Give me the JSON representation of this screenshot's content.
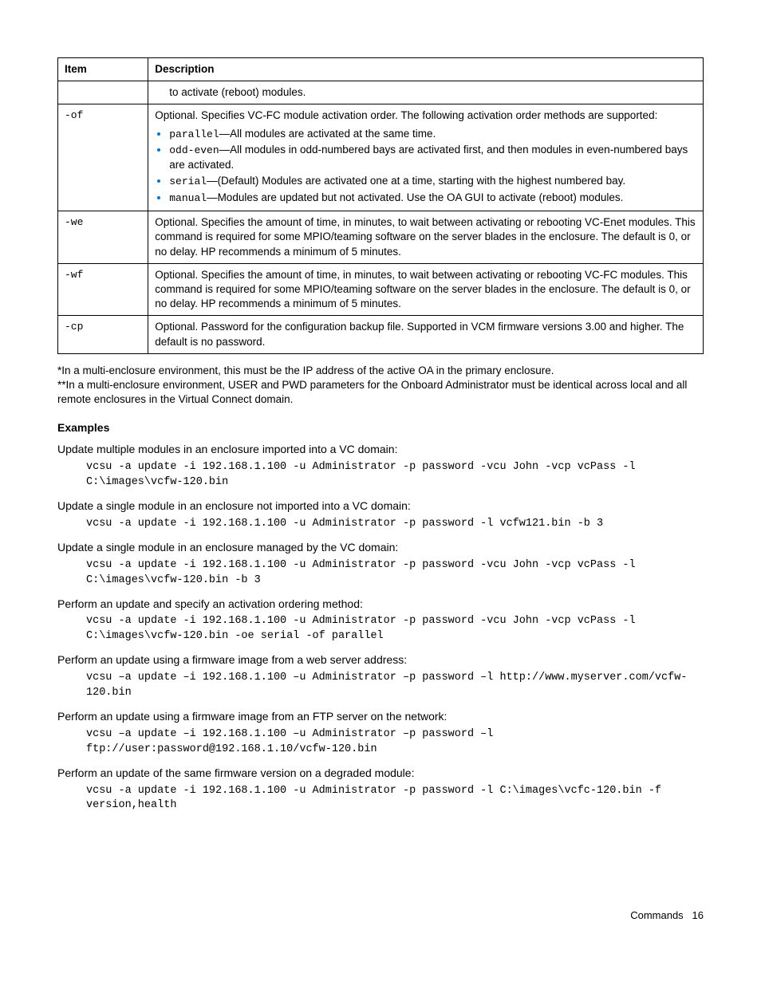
{
  "table": {
    "headers": {
      "item": "Item",
      "desc": "Description"
    },
    "rows": [
      {
        "item": "",
        "desc_pre": "",
        "paddedDesc": true,
        "plain": "to activate (reboot) modules."
      },
      {
        "item": "-of",
        "desc_pre": "Optional. Specifies VC-FC module activation order. The following activation order methods are supported:",
        "bullets": [
          {
            "code": "parallel",
            "text": "—All modules are activated at the same time."
          },
          {
            "code": "odd-even",
            "text": "—All modules in odd-numbered bays are activated first, and then modules in even-numbered bays are activated."
          },
          {
            "code": "serial",
            "text": "—(Default) Modules are activated one at a time, starting with the highest numbered bay."
          },
          {
            "code": "manual",
            "text": "—Modules are updated but not activated. Use the OA GUI to activate (reboot) modules."
          }
        ]
      },
      {
        "item": "-we",
        "plain": "Optional. Specifies the amount of time, in minutes, to wait between activating or rebooting VC-Enet modules. This command is required for some MPIO/teaming software on the server blades in the enclosure. The default is 0, or no delay. HP recommends a minimum of 5 minutes."
      },
      {
        "item": "-wf",
        "plain": "Optional. Specifies the amount of time, in minutes, to wait between activating or rebooting VC-FC modules. This command is required for some MPIO/teaming software on the server blades in the enclosure. The default is 0, or no delay. HP recommends a minimum of 5 minutes."
      },
      {
        "item": "-cp",
        "plain": "Optional. Password for the configuration backup file. Supported in VCM firmware versions 3.00 and higher. The default is no password."
      }
    ]
  },
  "footnotes": [
    "*In a multi-enclosure environment, this must be the IP address of the active OA in the primary enclosure.",
    "**In a multi-enclosure environment, USER and PWD parameters for the Onboard Administrator must be identical across local and all remote enclosures in the Virtual Connect domain."
  ],
  "examples_heading": "Examples",
  "examples": [
    {
      "intro": "Update multiple modules in an enclosure imported into a VC domain:",
      "code": "vcsu -a update -i 192.168.1.100 -u Administrator -p password -vcu John -vcp vcPass -l C:\\images\\vcfw-120.bin"
    },
    {
      "intro": "Update a single module in an enclosure not imported into a VC domain:",
      "code": "vcsu -a update -i 192.168.1.100 -u Administrator -p password -l vcfw121.bin -b 3"
    },
    {
      "intro": "Update a single module in an enclosure managed by the VC domain:",
      "code": "vcsu -a update -i 192.168.1.100 -u Administrator -p password -vcu John -vcp vcPass -l C:\\images\\vcfw-120.bin -b 3"
    },
    {
      "intro": "Perform an update and specify an activation ordering method:",
      "code": "vcsu -a update -i 192.168.1.100 -u Administrator -p password -vcu John -vcp vcPass -l C:\\images\\vcfw-120.bin -oe serial -of parallel"
    },
    {
      "intro": "Perform an update using a firmware image from a web server address:",
      "code": "vcsu –a update –i 192.168.1.100 –u Administrator –p password –l http://www.myserver.com/vcfw-120.bin"
    },
    {
      "intro": "Perform an update using a firmware image from an FTP server on the network:",
      "code": "vcsu –a update –i 192.168.1.100 –u Administrator –p password –l ftp://user:password@192.168.1.10/vcfw-120.bin"
    },
    {
      "intro": "Perform an update of the same firmware version on a degraded module:",
      "code": "vcsu -a update -i 192.168.1.100 -u Administrator -p password -l C:\\images\\vcfc-120.bin -f version,health"
    }
  ],
  "footer": {
    "section": "Commands",
    "page": "16"
  }
}
